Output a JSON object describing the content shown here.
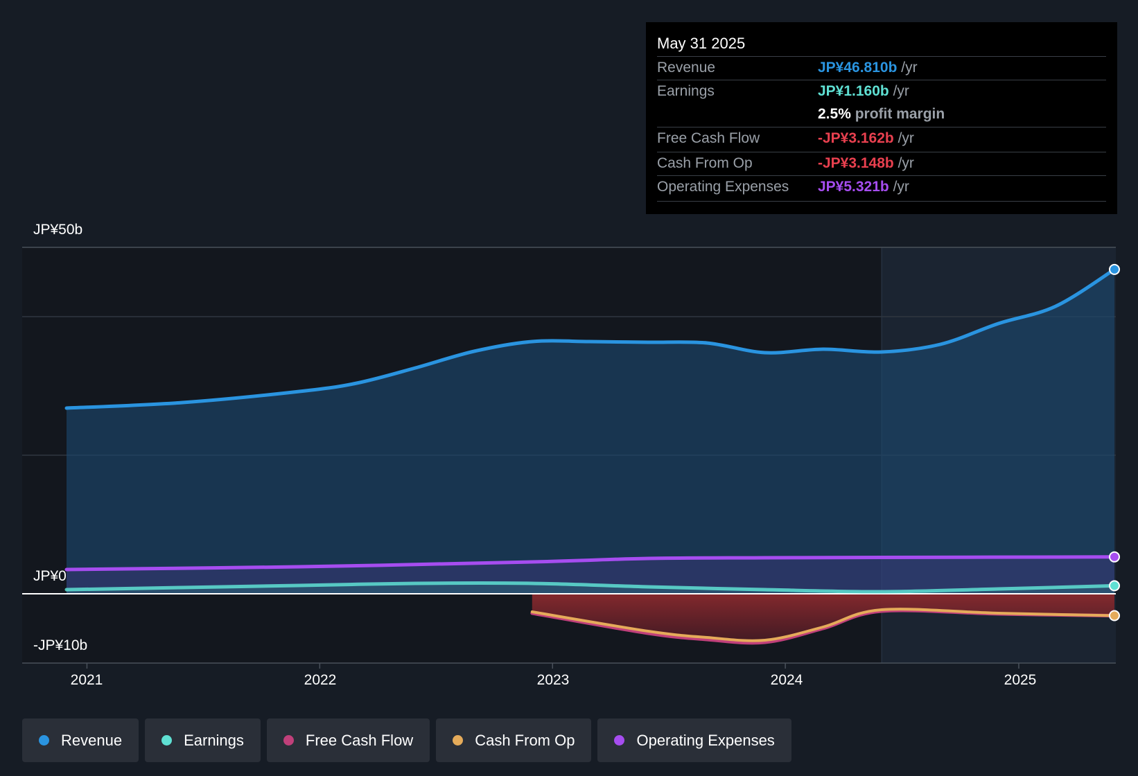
{
  "tooltip": {
    "date": "May 31 2025",
    "revenue": {
      "label": "Revenue",
      "value": "JP¥46.810b",
      "unit": "/yr",
      "color": "#2a94e0"
    },
    "earnings": {
      "label": "Earnings",
      "value": "JP¥1.160b",
      "unit": "/yr",
      "color": "#5fe0d3"
    },
    "margin": {
      "value": "2.5%",
      "text": "profit margin"
    },
    "fcf": {
      "label": "Free Cash Flow",
      "value": "-JP¥3.162b",
      "unit": "/yr",
      "color": "#e8404f"
    },
    "cfo": {
      "label": "Cash From Op",
      "value": "-JP¥3.148b",
      "unit": "/yr",
      "color": "#e8404f"
    },
    "opex": {
      "label": "Operating Expenses",
      "value": "JP¥5.321b",
      "unit": "/yr",
      "color": "#a64df0"
    }
  },
  "legend": [
    {
      "label": "Revenue",
      "color": "#2a94e0"
    },
    {
      "label": "Earnings",
      "color": "#5fe0d3"
    },
    {
      "label": "Free Cash Flow",
      "color": "#c0407a"
    },
    {
      "label": "Cash From Op",
      "color": "#e5ab5a"
    },
    {
      "label": "Operating Expenses",
      "color": "#a64df0"
    }
  ],
  "chart_data": {
    "type": "area",
    "title": "",
    "xlabel": "",
    "ylabel": "",
    "ylim": [
      -10,
      50
    ],
    "y_tick_labels": [
      "JP¥50b",
      "JP¥0",
      "-JP¥10b"
    ],
    "x_tick_labels": [
      "2021",
      "2022",
      "2023",
      "2024",
      "2025"
    ],
    "xlim": [
      "2020-11-30",
      "2025-05-31"
    ],
    "forecast_start": "2024-05-31",
    "grid": true,
    "legend_position": "bottom",
    "series": [
      {
        "name": "Revenue",
        "color": "#2a94e0",
        "points": [
          [
            "2020-11-30",
            26.8
          ],
          [
            "2021-05-31",
            27.6
          ],
          [
            "2021-11-30",
            29.2
          ],
          [
            "2022-02-28",
            30.4
          ],
          [
            "2022-05-31",
            32.6
          ],
          [
            "2022-08-31",
            35.0
          ],
          [
            "2022-11-30",
            36.4
          ],
          [
            "2023-02-28",
            36.4
          ],
          [
            "2023-05-31",
            36.3
          ],
          [
            "2023-08-31",
            36.2
          ],
          [
            "2023-11-30",
            34.8
          ],
          [
            "2024-02-29",
            35.3
          ],
          [
            "2024-05-31",
            34.9
          ],
          [
            "2024-08-31",
            36.0
          ],
          [
            "2024-11-30",
            39.0
          ],
          [
            "2025-02-28",
            41.5
          ],
          [
            "2025-05-31",
            46.81
          ]
        ]
      },
      {
        "name": "Earnings",
        "color": "#5fe0d3",
        "points": [
          [
            "2020-11-30",
            0.6
          ],
          [
            "2021-05-31",
            0.9
          ],
          [
            "2021-11-30",
            1.2
          ],
          [
            "2022-05-31",
            1.5
          ],
          [
            "2022-11-30",
            1.5
          ],
          [
            "2023-05-31",
            1.0
          ],
          [
            "2023-11-30",
            0.6
          ],
          [
            "2024-05-31",
            0.3
          ],
          [
            "2024-11-30",
            0.7
          ],
          [
            "2025-05-31",
            1.16
          ]
        ]
      },
      {
        "name": "Operating Expenses",
        "color": "#a64df0",
        "points": [
          [
            "2020-11-30",
            3.5
          ],
          [
            "2021-11-30",
            3.9
          ],
          [
            "2022-11-30",
            4.6
          ],
          [
            "2023-05-31",
            5.1
          ],
          [
            "2023-11-30",
            5.2
          ],
          [
            "2024-05-31",
            5.25
          ],
          [
            "2025-05-31",
            5.32
          ]
        ]
      },
      {
        "name": "Free Cash Flow",
        "color": "#c0407a",
        "points": [
          [
            "2022-11-30",
            -2.8
          ],
          [
            "2023-05-31",
            -5.7
          ],
          [
            "2023-08-31",
            -6.6
          ],
          [
            "2023-11-30",
            -7.0
          ],
          [
            "2024-02-29",
            -5.0
          ],
          [
            "2024-05-31",
            -2.5
          ],
          [
            "2024-11-30",
            -2.9
          ],
          [
            "2025-05-31",
            -3.16
          ]
        ]
      },
      {
        "name": "Cash From Op",
        "color": "#e5ab5a",
        "points": [
          [
            "2022-11-30",
            -2.6
          ],
          [
            "2023-05-31",
            -5.4
          ],
          [
            "2023-08-31",
            -6.3
          ],
          [
            "2023-11-30",
            -6.7
          ],
          [
            "2024-02-29",
            -4.8
          ],
          [
            "2024-05-31",
            -2.3
          ],
          [
            "2024-11-30",
            -2.8
          ],
          [
            "2025-05-31",
            -3.148
          ]
        ]
      }
    ]
  }
}
